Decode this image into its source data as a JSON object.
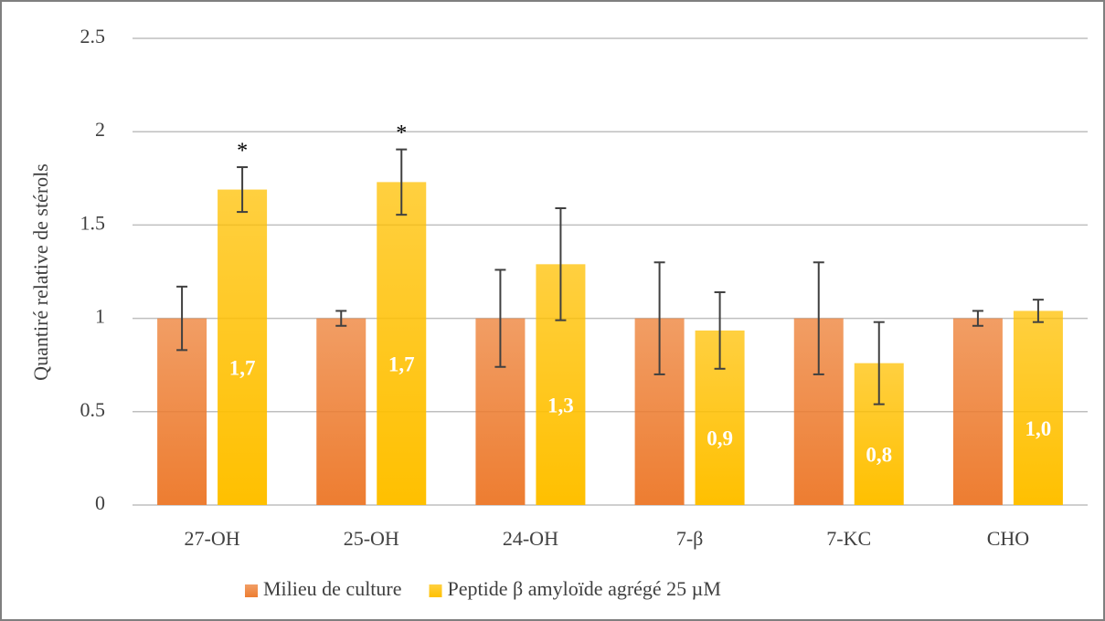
{
  "chart_data": {
    "type": "bar",
    "y_label": "Quantiré relative de stérols",
    "categories": [
      "27-OH",
      "25-OH",
      "24-OH",
      "7-β",
      "7-KC",
      "CHO"
    ],
    "series": [
      {
        "name": "Milieu de culture",
        "color": "#ed7d31",
        "values": [
          1,
          1,
          1,
          1,
          1,
          1
        ],
        "errors": [
          0.17,
          0.04,
          0.26,
          0.3,
          0.3,
          0.04
        ]
      },
      {
        "name": "Peptide β amyloïde agrégé 25 µM",
        "color": "#ffc000",
        "values": [
          1.69,
          1.73,
          1.29,
          0.935,
          0.76,
          1.04
        ],
        "errors": [
          0.12,
          0.175,
          0.3,
          0.205,
          0.22,
          0.06
        ],
        "value_labels": [
          "1,7",
          "1,7",
          "1,3",
          "0,9",
          "0,8",
          "1,0"
        ],
        "annotations": [
          "*",
          "*",
          null,
          null,
          null,
          null
        ]
      }
    ],
    "ylim": [
      0,
      2.5
    ],
    "yticks": [
      0,
      0.5,
      1,
      1.5,
      2,
      2.5
    ],
    "grid": true,
    "legend": "bottom"
  }
}
